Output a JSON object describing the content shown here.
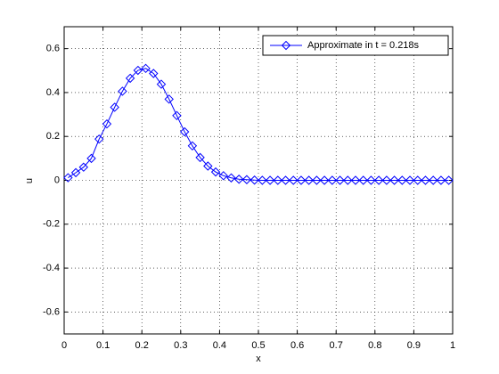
{
  "chart_data": {
    "type": "line",
    "x": [
      0.01,
      0.03,
      0.05,
      0.07,
      0.09,
      0.11,
      0.13,
      0.15,
      0.17,
      0.19,
      0.21,
      0.23,
      0.25,
      0.27,
      0.29,
      0.31,
      0.33,
      0.35,
      0.37,
      0.39,
      0.41,
      0.43,
      0.45,
      0.47,
      0.49,
      0.51,
      0.53,
      0.55,
      0.57,
      0.59,
      0.61,
      0.63,
      0.65,
      0.67,
      0.69,
      0.71,
      0.73,
      0.75,
      0.77,
      0.79,
      0.81,
      0.83,
      0.85,
      0.87,
      0.89,
      0.91,
      0.93,
      0.95,
      0.97,
      0.99
    ],
    "series": [
      {
        "name": "Approximate in t = 0.218s",
        "color": "#0000ff",
        "values": [
          0.012,
          0.035,
          0.06,
          0.1,
          0.188,
          0.257,
          0.333,
          0.406,
          0.465,
          0.501,
          0.51,
          0.487,
          0.438,
          0.37,
          0.295,
          0.221,
          0.157,
          0.104,
          0.065,
          0.038,
          0.021,
          0.011,
          0.005,
          0.003,
          0.001,
          0,
          0,
          0,
          0,
          0,
          0,
          0,
          0,
          0,
          0,
          0,
          0,
          0,
          0,
          0,
          0,
          0,
          0,
          0,
          0,
          0,
          0,
          0,
          0,
          0
        ]
      }
    ],
    "x_label": "x",
    "y_label": "u",
    "xlim": [
      0,
      1
    ],
    "xticks": [
      0,
      0.1,
      0.2,
      0.3,
      0.4,
      0.5,
      0.6,
      0.7,
      0.8,
      0.9,
      1
    ],
    "ylim": [
      -0.7,
      0.7
    ],
    "yticks": [
      -0.6,
      -0.4,
      -0.2,
      0,
      0.2,
      0.4,
      0.6
    ],
    "grid": true,
    "legend_position": "upper-right"
  }
}
